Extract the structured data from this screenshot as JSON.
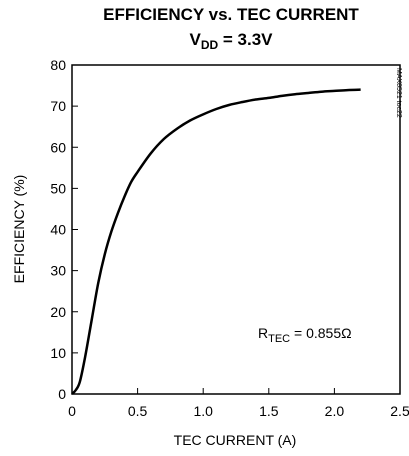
{
  "chart_data": {
    "type": "line",
    "title": "EFFICIENCY vs. TEC CURRENT",
    "subtitle": {
      "main": "V",
      "sub": "DD",
      "rest": " = 3.3V"
    },
    "xlabel": "TEC CURRENT (A)",
    "ylabel": "EFFICIENCY (%)",
    "xlim": [
      0,
      2.5
    ],
    "ylim": [
      0,
      80
    ],
    "xticks": [
      "0",
      "0.5",
      "1.0",
      "1.5",
      "2.0",
      "2.5"
    ],
    "xtick_values": [
      0,
      0.5,
      1.0,
      1.5,
      2.0,
      2.5
    ],
    "yticks": [
      "0",
      "10",
      "20",
      "30",
      "40",
      "50",
      "60",
      "70",
      "80"
    ],
    "ytick_values": [
      0,
      10,
      20,
      30,
      40,
      50,
      60,
      70,
      80
    ],
    "grid": false,
    "annotation": {
      "main": "R",
      "sub": "TEC",
      "rest": " = 0.855Ω",
      "x": 1.55,
      "y": 13
    },
    "watermark": "MAX8521 toc22",
    "series": [
      {
        "x": [
          0,
          0.03,
          0.06,
          0.1,
          0.15,
          0.2,
          0.25,
          0.3,
          0.35,
          0.4,
          0.45,
          0.5,
          0.6,
          0.7,
          0.8,
          0.9,
          1.0,
          1.1,
          1.2,
          1.3,
          1.4,
          1.5,
          1.6,
          1.7,
          1.8,
          1.9,
          2.0,
          2.1,
          2.2
        ],
        "y": [
          0,
          1,
          3,
          9,
          18,
          27,
          34,
          39.5,
          44,
          48,
          51.5,
          54,
          58.5,
          62,
          64.5,
          66.5,
          68,
          69.3,
          70.3,
          71,
          71.6,
          72,
          72.5,
          72.9,
          73.2,
          73.5,
          73.7,
          73.9,
          74
        ]
      }
    ]
  }
}
